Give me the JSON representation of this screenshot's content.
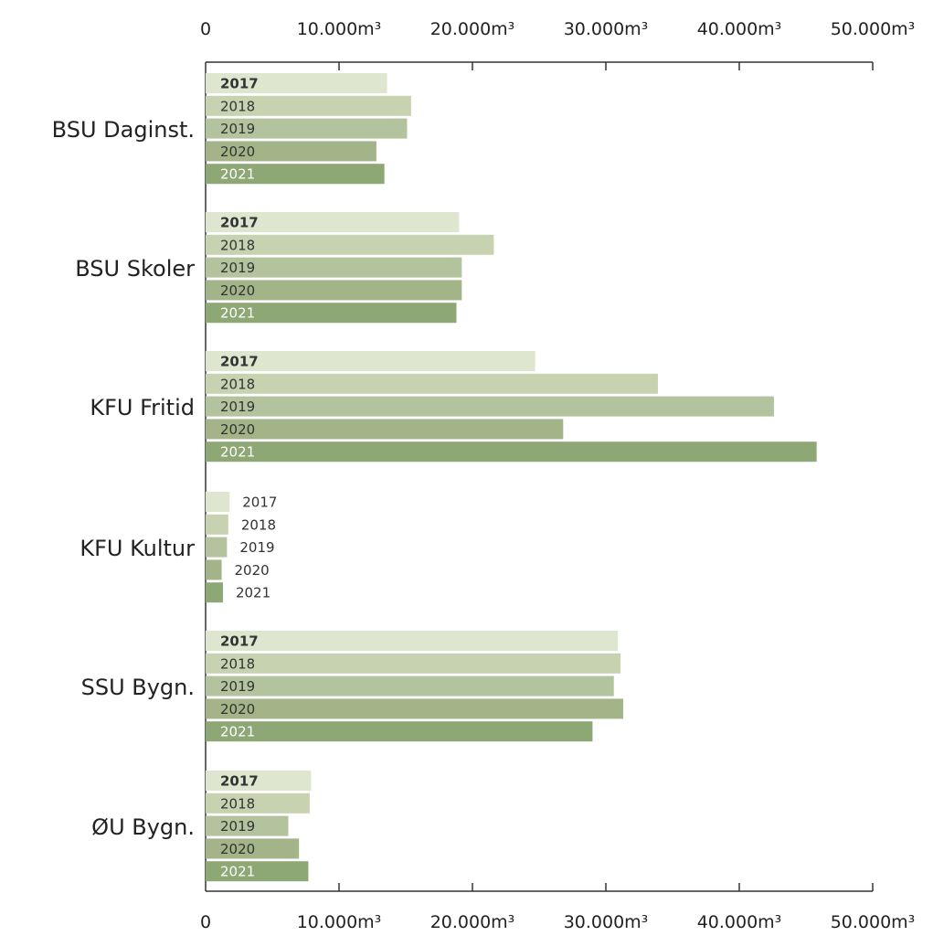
{
  "chart_data": {
    "type": "bar",
    "orientation": "horizontal",
    "title": "",
    "xlabel": "",
    "ylabel": "",
    "xlim": [
      0,
      50000
    ],
    "x_ticks": [
      0,
      10000,
      20000,
      30000,
      40000,
      50000
    ],
    "x_tick_labels": [
      "0",
      "10.000m³",
      "20.000m³",
      "30.000m³",
      "40.000m³",
      "50.000m³"
    ],
    "categories": [
      "BSU Daginst.",
      "BSU Skoler",
      "KFU Fritid",
      "KFU Kultur",
      "SSU Bygn.",
      "ØU Bygn."
    ],
    "series": [
      {
        "name": "2017",
        "color": "#dfe6cf",
        "values": [
          13600,
          19000,
          24700,
          1800,
          30900,
          7900
        ]
      },
      {
        "name": "2018",
        "color": "#c6d2b0",
        "values": [
          15400,
          21600,
          33900,
          1700,
          31100,
          7800
        ]
      },
      {
        "name": "2019",
        "color": "#b3c39e",
        "values": [
          15100,
          19200,
          42600,
          1600,
          30600,
          6200
        ]
      },
      {
        "name": "2020",
        "color": "#a2b488",
        "values": [
          12800,
          19200,
          26800,
          1200,
          31300,
          7000
        ]
      },
      {
        "name": "2021",
        "color": "#8da874",
        "values": [
          13400,
          18800,
          45800,
          1300,
          29000,
          7700
        ]
      }
    ],
    "bar_labels_inside": [
      [
        true,
        true,
        true,
        false,
        true,
        true
      ],
      [
        true,
        true,
        true,
        false,
        true,
        true
      ],
      [
        true,
        true,
        true,
        false,
        true,
        true
      ],
      [
        true,
        true,
        true,
        false,
        true,
        true
      ],
      [
        true,
        true,
        true,
        false,
        true,
        true
      ]
    ],
    "grid": false,
    "legend": "none"
  }
}
